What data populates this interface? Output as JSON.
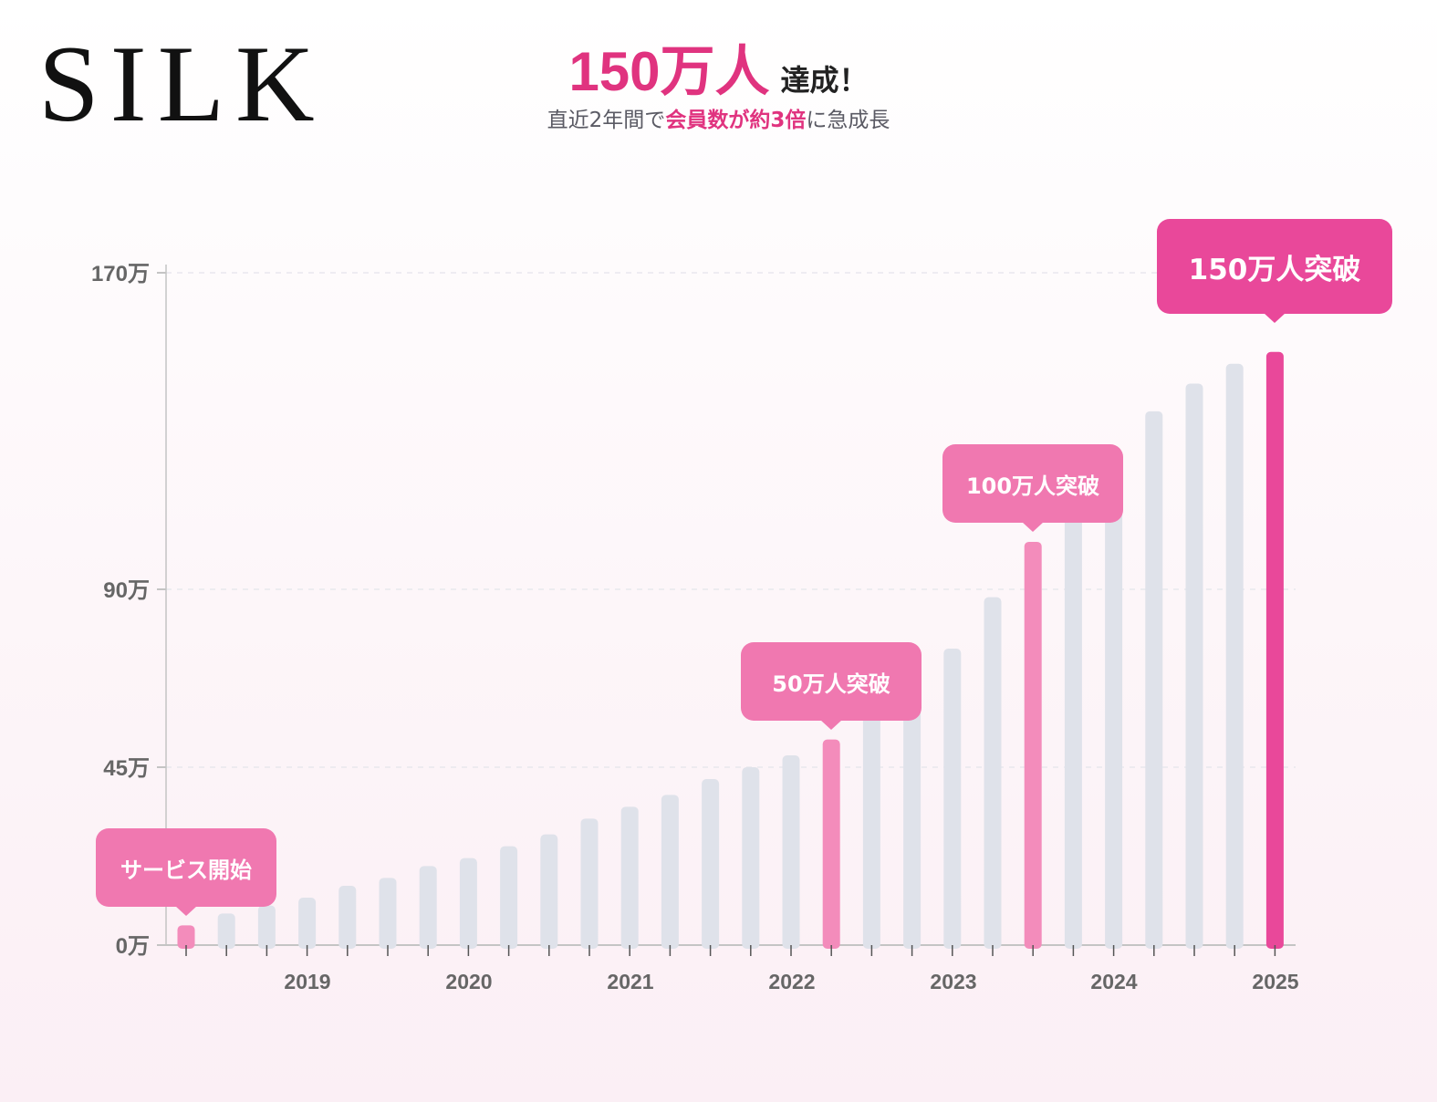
{
  "brand": "SILK",
  "headline": {
    "big": "150万人",
    "small": "達成！"
  },
  "subtitle": {
    "pre": "直近2年間で",
    "highlight": "会員数が約3倍",
    "post": "に急成長"
  },
  "colors": {
    "accent": "#e9489a",
    "milestone": "#f38cbb",
    "bar": "#dfe2ea",
    "axis": "#c4c4c4",
    "tick_text": "#666666"
  },
  "chart_data": {
    "type": "bar",
    "unit": "万",
    "y_ticks": [
      "0万",
      "45万",
      "90万",
      "170万"
    ],
    "x_labels": [
      "2019",
      "2020",
      "2021",
      "2022",
      "2023",
      "2024",
      "2025"
    ],
    "values": [
      5,
      8,
      10,
      12,
      15,
      17,
      20,
      22,
      25,
      28,
      32,
      35,
      38,
      42,
      45,
      48,
      52,
      58,
      64,
      75,
      88,
      102,
      115,
      122,
      135,
      142,
      147,
      150
    ],
    "highlight": [
      0,
      16,
      21,
      27
    ],
    "ylim": [
      0,
      170
    ],
    "grid": true,
    "callouts": [
      {
        "text": "サービス開始",
        "bar": 0
      },
      {
        "text": "50万人突破",
        "bar": 16
      },
      {
        "text": "100万人突破",
        "bar": 21
      },
      {
        "text": "150万人突破",
        "bar": 27
      }
    ]
  }
}
